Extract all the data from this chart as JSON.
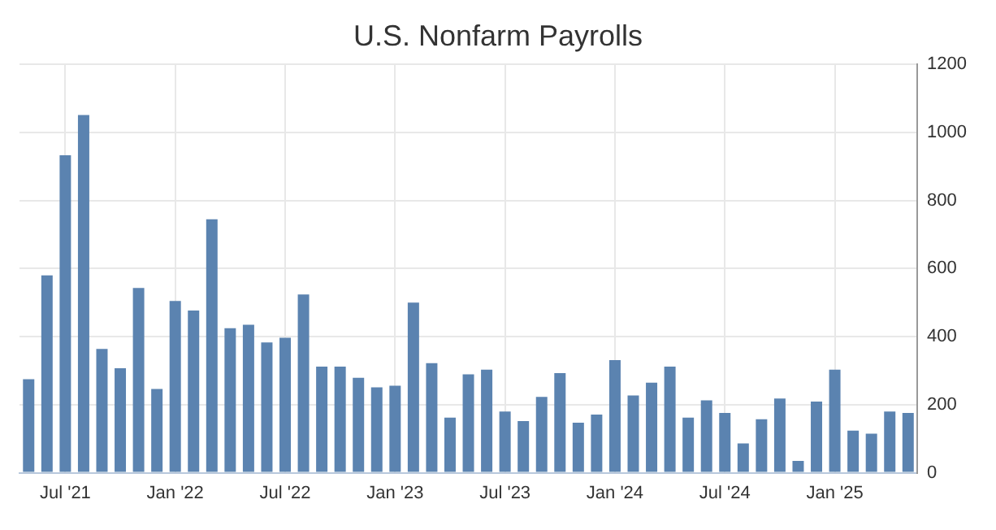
{
  "chart_data": {
    "type": "bar",
    "title": "U.S. Nonfarm Payrolls",
    "categories": [
      null,
      null,
      "Jul '21",
      null,
      null,
      null,
      null,
      null,
      "Jan '22",
      null,
      null,
      null,
      null,
      null,
      "Jul '22",
      null,
      null,
      null,
      null,
      null,
      "Jan '23",
      null,
      null,
      null,
      null,
      null,
      "Jul '23",
      null,
      null,
      null,
      null,
      null,
      "Jan '24",
      null,
      null,
      null,
      null,
      null,
      "Jul '24",
      null,
      null,
      null,
      null,
      null,
      "Jan '25",
      null,
      null,
      null,
      null
    ],
    "values": [
      275,
      580,
      933,
      1051,
      364,
      307,
      543,
      246,
      505,
      477,
      745,
      425,
      435,
      383,
      397,
      524,
      312,
      312,
      279,
      251,
      256,
      500,
      322,
      162,
      289,
      303,
      180,
      152,
      223,
      293,
      147,
      171,
      331,
      227,
      265,
      312,
      162,
      213,
      176,
      86,
      157,
      218,
      35,
      209,
      303,
      124,
      115,
      180,
      176
    ],
    "color": "#5b83b0",
    "ylim": [
      0,
      1200
    ],
    "yticks": [
      0,
      200,
      400,
      600,
      800,
      1000,
      1200
    ],
    "grid": true,
    "legend": false
  }
}
